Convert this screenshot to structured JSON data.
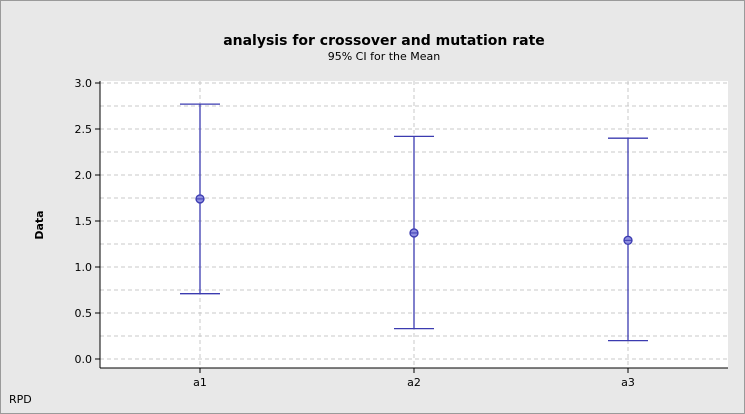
{
  "chart_data": {
    "type": "interval",
    "title": "analysis for crossover and mutation rate",
    "subtitle": "95% CI for the Mean",
    "ylabel": "Data",
    "xlabel": "",
    "footnote": "RPD",
    "categories": [
      "a1",
      "a2",
      "a3"
    ],
    "means": [
      1.74,
      1.37,
      1.29
    ],
    "lower": [
      0.71,
      0.33,
      0.2
    ],
    "upper": [
      2.77,
      2.42,
      2.4
    ],
    "ylim": [
      0.0,
      3.0
    ],
    "yticks": [
      0.0,
      0.5,
      1.0,
      1.5,
      2.0,
      2.5,
      3.0
    ],
    "ytick_labels": [
      "0.0",
      "0.5",
      "1.0",
      "1.5",
      "2.0",
      "2.5",
      "3.0"
    ],
    "grid": true,
    "colors": {
      "series": "#3b3bb0",
      "grid": "#c8c8c8",
      "background": "#e8e8e8",
      "plot_background": "#ffffff"
    }
  }
}
